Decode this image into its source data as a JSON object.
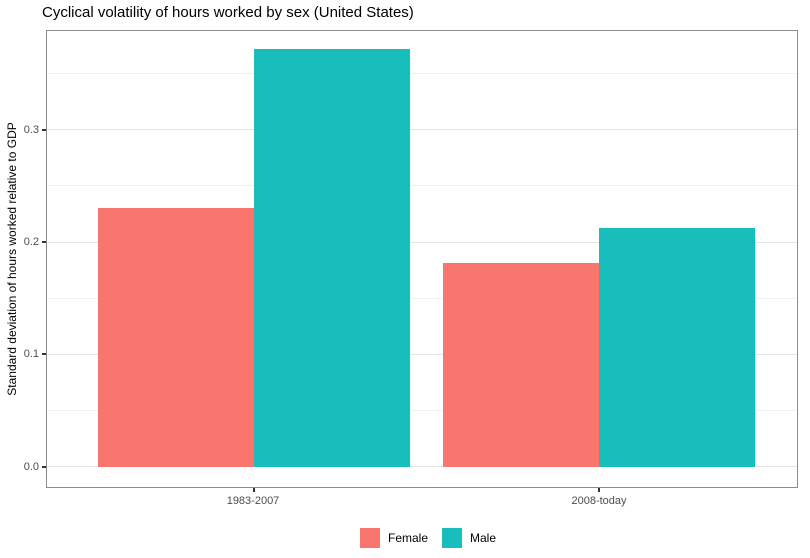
{
  "chart_data": {
    "type": "bar",
    "title": "Cyclical volatility of hours worked by sex (United States)",
    "ylabel": "Standard deviation of hours worked relative to GDP",
    "xlabel": "",
    "categories": [
      "1983-2007",
      "2008-today"
    ],
    "series": [
      {
        "name": "Female",
        "color": "#F8766D",
        "values": [
          0.23,
          0.181
        ]
      },
      {
        "name": "Male",
        "color": "#17BEBB",
        "values": [
          0.372,
          0.213
        ]
      }
    ],
    "ylim": [
      -0.018,
      0.388
    ],
    "yticks": [
      0,
      0.1,
      0.2,
      0.3
    ],
    "ytick_labels": [
      "0.0",
      "0.1",
      "0.2",
      "0.3"
    ],
    "minor_gridlines": [
      0.05,
      0.15,
      0.25,
      0.35
    ],
    "grid": true,
    "legend_position": "bottom",
    "colors": {
      "panel_border": "#8C8C8C",
      "grid_major": "#E4E4E4",
      "grid_minor": "#F1F1F1",
      "axis_text": "#4D4D4D",
      "tick": "#333333",
      "title_text": "#000000"
    }
  }
}
